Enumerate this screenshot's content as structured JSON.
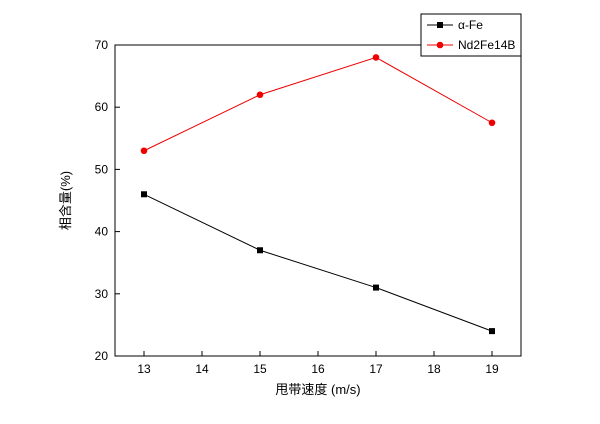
{
  "chart_data": {
    "type": "line",
    "title": "",
    "xlabel": "甩带速度 (m/s)",
    "ylabel": "相含量(%)",
    "xlim": [
      12.5,
      19.5
    ],
    "ylim": [
      20,
      70
    ],
    "xticks": [
      13,
      14,
      15,
      16,
      17,
      18,
      19
    ],
    "yticks": [
      20,
      30,
      40,
      50,
      60,
      70
    ],
    "x": [
      13,
      15,
      17,
      19
    ],
    "series": [
      {
        "name": "α-Fe",
        "values": [
          46,
          37,
          31,
          24
        ],
        "color": "#000000",
        "marker": "square"
      },
      {
        "name": "Nd2Fe14B",
        "values": [
          53,
          62,
          68,
          57.5
        ],
        "color": "#ee0000",
        "marker": "circle"
      }
    ],
    "legend_position": "top-right",
    "grid": false,
    "colors": {
      "axis": "#000000",
      "background": "#ffffff"
    }
  }
}
